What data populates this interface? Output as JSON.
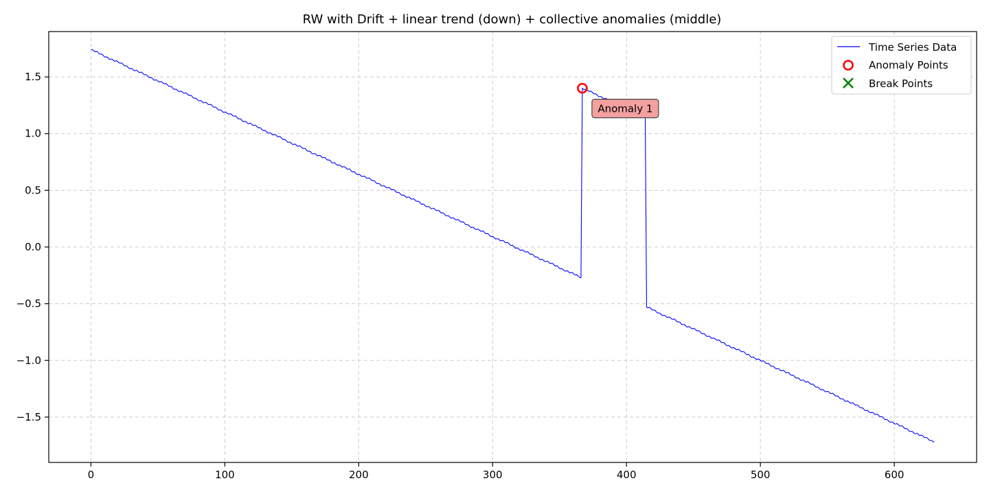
{
  "chart_data": {
    "type": "line",
    "title": "RW with Drift + linear trend (down) + collective anomalies (middle)",
    "xlabel": "",
    "ylabel": "",
    "xlim": [
      -31.5,
      661.5
    ],
    "ylim": [
      -1.9,
      1.9
    ],
    "xticks": [
      0,
      100,
      200,
      300,
      400,
      500,
      600
    ],
    "yticks": [
      -1.5,
      -1.0,
      -0.5,
      0.0,
      0.5,
      1.0,
      1.5
    ],
    "xtick_labels": [
      "0",
      "100",
      "200",
      "300",
      "400",
      "500",
      "600"
    ],
    "ytick_labels": [
      "−1.5",
      "−1.0",
      "−0.5",
      "0.0",
      "0.5",
      "1.0",
      "1.5"
    ],
    "grid": true,
    "legend_position": "top-right",
    "legend": [
      "Time Series Data",
      "Anomaly Points",
      "Break Points"
    ],
    "series": [
      {
        "name": "Time Series Data",
        "color": "#0000ff",
        "segments": [
          {
            "x_start": 0,
            "y_start": 1.74,
            "x_end": 366,
            "y_end": -0.27
          },
          {
            "x_start": 367,
            "y_start": 1.4,
            "x_end": 414,
            "y_end": 1.15
          },
          {
            "x_start": 415,
            "y_start": -0.53,
            "x_end": 630,
            "y_end": -1.72
          }
        ]
      }
    ],
    "anomaly_points": [
      {
        "x": 367,
        "y": 1.4,
        "color": "#ff0000"
      }
    ],
    "break_points": [],
    "annotations": [
      {
        "text": "Anomaly 1",
        "x": 367,
        "y": 1.4,
        "facecolor": "#f4a0a0"
      }
    ],
    "colors": {
      "line": "#0000ff",
      "anomaly": "#ff0000",
      "break": "#008000",
      "grid": "#cccccc",
      "annotation_box": "#f4a0a0",
      "annotation_border": "#444444"
    }
  }
}
